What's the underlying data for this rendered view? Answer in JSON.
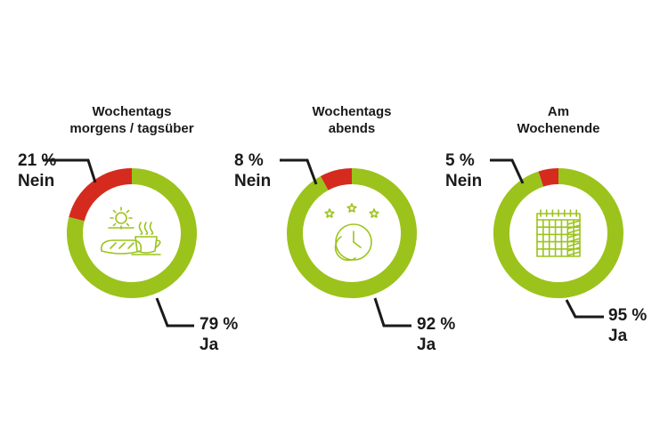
{
  "chart_data": [
    {
      "type": "pie",
      "title": "Wochentags\nmorgens / tagsüber",
      "slices": [
        {
          "label": "Nein",
          "value": 21,
          "value_label": "21 %",
          "color": "#d52b1e"
        },
        {
          "label": "Ja",
          "value": 79,
          "value_label": "79 %",
          "color": "#9bc31c"
        }
      ],
      "icon": "breakfast-icon"
    },
    {
      "type": "pie",
      "title": "Wochentags\nabends",
      "slices": [
        {
          "label": "Nein",
          "value": 8,
          "value_label": "8 %",
          "color": "#d52b1e"
        },
        {
          "label": "Ja",
          "value": 92,
          "value_label": "92 %",
          "color": "#9bc31c"
        }
      ],
      "icon": "night-clock-icon"
    },
    {
      "type": "pie",
      "title": "Am\nWochenende",
      "slices": [
        {
          "label": "Nein",
          "value": 5,
          "value_label": "5 %",
          "color": "#d52b1e"
        },
        {
          "label": "Ja",
          "value": 95,
          "value_label": "95 %",
          "color": "#9bc31c"
        }
      ],
      "icon": "calendar-icon"
    }
  ]
}
